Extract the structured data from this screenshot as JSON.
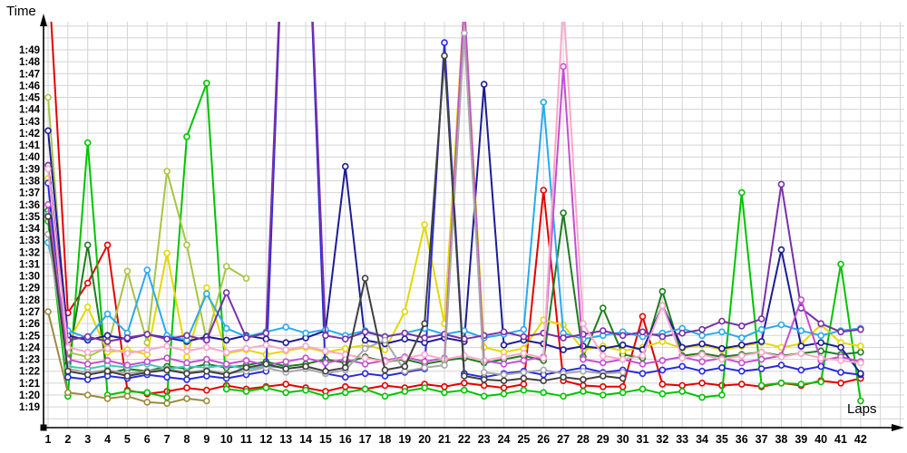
{
  "chart_data": {
    "type": "line",
    "title": "",
    "xlabel": "Laps",
    "ylabel": "Time",
    "legend_position": "none",
    "grid": true,
    "x_axis": {
      "label": "Laps",
      "range": [
        1,
        42
      ]
    },
    "y_axis": {
      "label": "Time",
      "unit": "M:SS lap time",
      "min_seconds": 79,
      "max_seconds": 109,
      "tick_labels": [
        "1:19",
        "1:20",
        "1:21",
        "1:22",
        "1:23",
        "1:24",
        "1:25",
        "1:26",
        "1:27",
        "1:28",
        "1:29",
        "1:30",
        "1:31",
        "1:32",
        "1:33",
        "1:34",
        "1:35",
        "1:36",
        "1:37",
        "1:38",
        "1:39",
        "1:40",
        "1:41",
        "1:42",
        "1:43",
        "1:44",
        "1:45",
        "1:46",
        "1:47",
        "1:48",
        "1:49"
      ]
    },
    "x": [
      1,
      2,
      3,
      4,
      5,
      6,
      7,
      8,
      9,
      10,
      11,
      12,
      13,
      14,
      15,
      16,
      17,
      18,
      19,
      20,
      21,
      22,
      23,
      24,
      25,
      26,
      27,
      28,
      29,
      30,
      31,
      32,
      33,
      34,
      35,
      36,
      37,
      38,
      39,
      40,
      41,
      42
    ],
    "clip_note": "values above 110.5 seconds run off the top of the plot (clipped vertical lines); null = car no longer on track",
    "series": [
      {
        "name": "red",
        "color": "#e60000",
        "values": [
          116,
          86.9,
          89.4,
          92.6,
          80.4,
          80.1,
          80.3,
          80.6,
          80.4,
          80.8,
          80.5,
          80.7,
          80.9,
          80.6,
          80.3,
          80.7,
          80.5,
          80.8,
          80.6,
          80.9,
          80.7,
          81.0,
          80.8,
          80.6,
          80.9,
          97.2,
          81.2,
          80.8,
          80.7,
          80.7,
          86.6,
          80.9,
          80.8,
          81.0,
          80.8,
          80.9,
          80.7,
          81.0,
          80.8,
          81.2,
          81.0,
          81.4
        ]
      },
      {
        "name": "green",
        "color": "#00c400",
        "values": [
          94.6,
          79.9,
          101.2,
          80.0,
          80.3,
          80.2,
          79.8,
          101.7,
          106.2,
          80.5,
          80.3,
          80.6,
          80.2,
          80.4,
          79.9,
          80.2,
          80.5,
          79.9,
          80.3,
          80.6,
          80.2,
          80.4,
          79.9,
          80.1,
          80.4,
          80.2,
          79.9,
          80.3,
          80.0,
          80.2,
          80.5,
          80.1,
          80.3,
          79.8,
          80.0,
          97.0,
          80.8,
          81.0,
          80.9,
          81.1,
          91.0,
          79.5
        ]
      },
      {
        "name": "dark-green",
        "color": "#1e7d1e",
        "values": [
          95.5,
          82.6,
          92.6,
          81.8,
          82.2,
          82.0,
          82.4,
          82.2,
          82.6,
          82.3,
          82.5,
          82.8,
          82.4,
          82.6,
          83.0,
          82.7,
          83.2,
          82.8,
          83.0,
          82.6,
          82.9,
          83.1,
          82.7,
          83.0,
          83.3,
          82.9,
          95.3,
          83.2,
          87.3,
          83.4,
          83.1,
          88.7,
          83.3,
          83.5,
          83.2,
          83.4,
          83.6,
          83.3,
          83.5,
          83.7,
          83.4,
          83.6
        ]
      },
      {
        "name": "yellow-green",
        "color": "#a8c545",
        "values": [
          105.0,
          83.6,
          83.2,
          84.0,
          90.4,
          84.4,
          98.8,
          92.6,
          84.6,
          90.8,
          89.8,
          null,
          null,
          null,
          null,
          null,
          null,
          null,
          null,
          null,
          null,
          null,
          null,
          null,
          null,
          null,
          null,
          null,
          null,
          null,
          null,
          null,
          null,
          null,
          null,
          null,
          null,
          null,
          null,
          null,
          null,
          null
        ]
      },
      {
        "name": "dark-khaki",
        "color": "#9a8a40",
        "values": [
          87.0,
          80.2,
          80.0,
          79.7,
          79.9,
          79.4,
          79.3,
          79.7,
          79.5,
          null,
          null,
          null,
          null,
          null,
          null,
          null,
          null,
          null,
          null,
          null,
          null,
          null,
          null,
          null,
          null,
          null,
          null,
          null,
          null,
          null,
          null,
          null,
          null,
          null,
          null,
          null,
          null,
          null,
          null,
          null,
          null,
          null
        ]
      },
      {
        "name": "yellow",
        "color": "#e3d800",
        "values": [
          98.2,
          84.4,
          87.4,
          83.6,
          83.8,
          83.4,
          91.9,
          83.2,
          89.0,
          83.5,
          83.8,
          83.4,
          83.7,
          84.0,
          83.6,
          83.9,
          84.2,
          83.8,
          87.0,
          94.3,
          86.0,
          113.0,
          84.0,
          83.6,
          83.9,
          86.3,
          85.9,
          83.8,
          84.1,
          83.7,
          84.0,
          84.5,
          83.9,
          84.2,
          83.8,
          84.1,
          84.4,
          84.0,
          84.3,
          85.9,
          84.4,
          84.1
        ]
      },
      {
        "name": "blue",
        "color": "#2a2ae0",
        "values": [
          97.8,
          81.5,
          81.3,
          81.6,
          81.4,
          81.7,
          81.5,
          81.3,
          81.6,
          81.4,
          81.7,
          82.0,
          126,
          126,
          81.8,
          81.5,
          81.8,
          81.6,
          81.9,
          82.2,
          109.6,
          81.8,
          81.5,
          81.8,
          82.0,
          81.7,
          82.0,
          82.3,
          81.9,
          82.1,
          81.8,
          82.1,
          82.4,
          82.0,
          82.3,
          82.0,
          82.2,
          82.5,
          82.1,
          82.4,
          81.9,
          81.7
        ]
      },
      {
        "name": "navy",
        "color": "#1c1c96",
        "values": [
          102.2,
          85.0,
          84.6,
          85.0,
          84.7,
          85.1,
          84.8,
          84.5,
          84.9,
          84.6,
          85.0,
          84.7,
          84.4,
          84.8,
          85.4,
          99.2,
          84.6,
          84.3,
          84.7,
          84.4,
          84.8,
          84.5,
          106.1,
          84.2,
          84.6,
          84.3,
          83.8,
          84.1,
          83.9,
          84.2,
          83.8,
          87.5,
          84.0,
          84.3,
          83.9,
          84.2,
          84.5,
          92.2,
          84.1,
          84.4,
          84.0,
          81.8
        ]
      },
      {
        "name": "sky-blue",
        "color": "#28aaf0",
        "values": [
          92.8,
          85.4,
          84.8,
          86.8,
          85.2,
          90.5,
          85.0,
          84.6,
          88.5,
          85.6,
          84.9,
          85.3,
          85.7,
          85.2,
          85.5,
          85.0,
          85.4,
          84.9,
          85.2,
          85.6,
          85.1,
          85.4,
          84.8,
          85.1,
          85.5,
          104.6,
          85.2,
          84.7,
          85.0,
          85.3,
          84.9,
          85.2,
          85.6,
          85.0,
          85.3,
          84.8,
          85.5,
          85.9,
          85.4,
          85.0,
          85.4,
          85.6
        ]
      },
      {
        "name": "turquoise",
        "color": "#40c8b8",
        "values": [
          95.2,
          82.4,
          82.2,
          82.5,
          82.3,
          82.6,
          82.2,
          82.4,
          82.3,
          82.5,
          82.2,
          82.4,
          82.3,
          null,
          null,
          null,
          null,
          null,
          null,
          null,
          null,
          null,
          null,
          null,
          null,
          null,
          null,
          null,
          null,
          null,
          null,
          null,
          null,
          null,
          null,
          null,
          null,
          null,
          null,
          null,
          null,
          null
        ]
      },
      {
        "name": "purple",
        "color": "#7a30a8",
        "values": [
          99.3,
          84.6,
          84.9,
          84.5,
          84.8,
          85.1,
          84.7,
          85.0,
          84.6,
          88.6,
          84.8,
          85.2,
          126,
          126,
          85.0,
          84.7,
          85.3,
          84.9,
          85.2,
          84.8,
          85.1,
          84.7,
          85.0,
          85.3,
          84.9,
          85.2,
          84.8,
          85.1,
          85.4,
          85.0,
          85.3,
          84.9,
          85.2,
          85.5,
          86.2,
          85.8,
          86.4,
          97.7,
          87.3,
          86.0,
          85.3,
          85.5
        ]
      },
      {
        "name": "orchid",
        "color": "#c44fd0",
        "values": [
          96.0,
          83.0,
          82.6,
          82.9,
          82.5,
          82.8,
          83.1,
          82.7,
          83.0,
          82.6,
          82.9,
          82.5,
          82.8,
          83.1,
          82.7,
          83.0,
          82.6,
          82.9,
          83.2,
          82.8,
          83.1,
          113.0,
          82.9,
          82.6,
          82.9,
          83.2,
          107.6,
          83.0,
          82.7,
          83.0,
          82.6,
          82.9,
          83.2,
          82.8,
          83.1,
          82.7,
          83.0,
          83.3,
          88.0,
          82.9,
          83.2,
          82.8
        ]
      },
      {
        "name": "pink",
        "color": "#f9a8cb",
        "values": [
          99.0,
          84.0,
          83.6,
          83.9,
          83.5,
          83.8,
          84.1,
          83.7,
          84.0,
          83.6,
          83.9,
          84.2,
          83.8,
          84.1,
          83.7,
          83.4,
          83.1,
          82.8,
          83.1,
          83.4,
          83.0,
          83.3,
          82.9,
          83.2,
          83.5,
          83.1,
          113.0,
          86.0,
          83.3,
          83.0,
          83.3,
          87.5,
          83.1,
          83.4,
          83.0,
          83.3,
          83.6,
          83.2,
          83.5,
          83.1,
          82.9,
          82.7
        ]
      },
      {
        "name": "gray",
        "color": "#a8a8a8",
        "values": [
          93.5,
          82.2,
          81.9,
          82.1,
          81.8,
          82.0,
          82.2,
          81.9,
          82.1,
          81.8,
          82.0,
          82.3,
          81.9,
          82.2,
          81.8,
          82.1,
          83.9,
          84.6,
          82.0,
          82.3,
          82.5,
          110.4,
          81.9,
          81.7,
          81.9,
          82.1,
          81.8,
          82.0,
          81.8,
          81.9,
          null,
          null,
          null,
          null,
          null,
          null,
          null,
          null,
          null,
          null,
          null,
          null
        ]
      },
      {
        "name": "dark-gray",
        "color": "#404040",
        "values": [
          95.0,
          82.0,
          81.7,
          82.0,
          81.6,
          81.9,
          82.1,
          81.8,
          82.0,
          81.7,
          82.3,
          82.6,
          82.2,
          82.4,
          82.0,
          82.3,
          89.8,
          82.1,
          82.4,
          86.0,
          108.5,
          81.6,
          81.3,
          81.2,
          81.4,
          81.2,
          81.5,
          81.3,
          81.6,
          81.4,
          null,
          null,
          null,
          null,
          null,
          null,
          null,
          null,
          null,
          null,
          null,
          null
        ]
      }
    ]
  },
  "style": {
    "gridline_color": "#d4d4d4",
    "axis_color": "#000000",
    "background": "#ffffff",
    "marker": "hollow-circle"
  }
}
